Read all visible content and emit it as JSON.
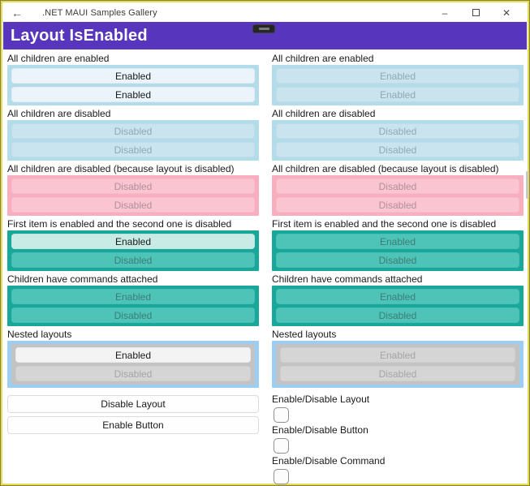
{
  "window": {
    "back_glyph": "←",
    "title": ".NET MAUI Samples Gallery",
    "minimize_glyph": "–",
    "close_glyph": "✕"
  },
  "header": {
    "title": "Layout IsEnabled"
  },
  "columns": {
    "left": {
      "sections": [
        {
          "label": "All children are enabled",
          "buttons": [
            "Enabled",
            "Enabled"
          ]
        },
        {
          "label": "All children are disabled",
          "buttons": [
            "Disabled",
            "Disabled"
          ]
        },
        {
          "label": "All children are disabled (because layout is disabled)",
          "buttons": [
            "Disabled",
            "Disabled"
          ]
        },
        {
          "label": "First item is enabled and the second one is disabled",
          "buttons": [
            "Enabled",
            "Disabled"
          ]
        },
        {
          "label": "Children have commands attached",
          "buttons": [
            "Enabled",
            "Disabled"
          ]
        },
        {
          "label": "Nested layouts",
          "buttons": [
            "Enabled",
            "Disabled"
          ]
        }
      ],
      "footer_buttons": [
        "Disable Layout",
        "Enable Button"
      ]
    },
    "right": {
      "sections": [
        {
          "label": "All children are enabled",
          "buttons": [
            "Enabled",
            "Enabled"
          ]
        },
        {
          "label": "All children are disabled",
          "buttons": [
            "Disabled",
            "Disabled"
          ]
        },
        {
          "label": "All children are disabled (because layout is disabled)",
          "buttons": [
            "Disabled",
            "Disabled"
          ]
        },
        {
          "label": "First item is enabled and the second one is disabled",
          "buttons": [
            "Enabled",
            "Disabled"
          ]
        },
        {
          "label": "Children have commands attached",
          "buttons": [
            "Enabled",
            "Disabled"
          ]
        },
        {
          "label": "Nested layouts",
          "buttons": [
            "Enabled",
            "Disabled"
          ]
        }
      ],
      "toggles": [
        {
          "label": "Enable/Disable Layout",
          "checked": false
        },
        {
          "label": "Enable/Disable Button",
          "checked": false
        },
        {
          "label": "Enable/Disable Command",
          "checked": false
        }
      ]
    }
  },
  "colors": {
    "header_purple": "#5735bd",
    "light_blue": "#b2dce9",
    "pink": "#f8aebf",
    "teal": "#18a89b",
    "nested_blue": "#9ccef3",
    "border_yellow": "#e5dc55",
    "border_dark": "#8a8138"
  }
}
